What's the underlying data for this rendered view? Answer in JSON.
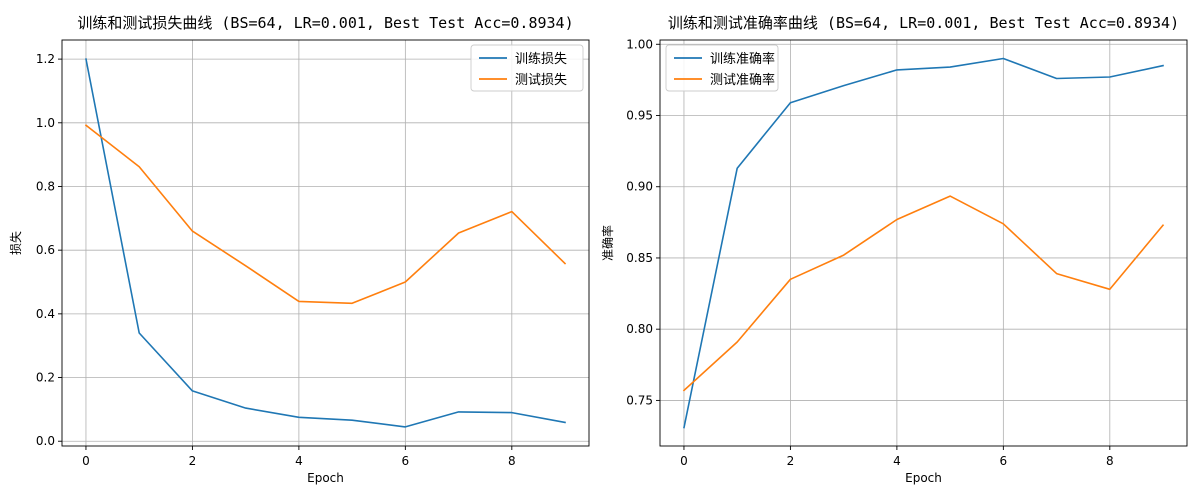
{
  "chart_data": [
    {
      "type": "line",
      "title": "训练和测试损失曲线 (BS=64, LR=0.001, Best Test Acc=0.8934)",
      "xlabel": "Epoch",
      "ylabel": "损失",
      "x": [
        0,
        1,
        2,
        3,
        4,
        5,
        6,
        7,
        8,
        9
      ],
      "xlim": [
        -0.45,
        9.45
      ],
      "ylim": [
        -0.015,
        1.26
      ],
      "xticks": [
        0,
        2,
        4,
        6,
        8
      ],
      "xtick_labels": [
        "0",
        "2",
        "4",
        "6",
        "8"
      ],
      "yticks": [
        0.0,
        0.2,
        0.4,
        0.6,
        0.8,
        1.0,
        1.2
      ],
      "ytick_labels": [
        "0.0",
        "0.2",
        "0.4",
        "0.6",
        "0.8",
        "1.0",
        "1.2"
      ],
      "grid": true,
      "legend_position": "top-right",
      "series": [
        {
          "name": "训练损失",
          "color": "#1f77b4",
          "values": [
            1.2,
            0.34,
            0.158,
            0.104,
            0.075,
            0.066,
            0.045,
            0.092,
            0.09,
            0.059
          ]
        },
        {
          "name": "测试损失",
          "color": "#ff7f0e",
          "values": [
            0.992,
            0.862,
            0.66,
            0.551,
            0.439,
            0.433,
            0.5,
            0.654,
            0.721,
            0.558
          ]
        }
      ]
    },
    {
      "type": "line",
      "title": "训练和测试准确率曲线 (BS=64, LR=0.001, Best Test Acc=0.8934)",
      "xlabel": "Epoch",
      "ylabel": "准确率",
      "x": [
        0,
        1,
        2,
        3,
        4,
        5,
        6,
        7,
        8,
        9
      ],
      "xlim": [
        -0.45,
        9.45
      ],
      "ylim": [
        0.718,
        1.003
      ],
      "xticks": [
        0,
        2,
        4,
        6,
        8
      ],
      "xtick_labels": [
        "0",
        "2",
        "4",
        "6",
        "8"
      ],
      "yticks": [
        0.75,
        0.8,
        0.85,
        0.9,
        0.95,
        1.0
      ],
      "ytick_labels": [
        "0.75",
        "0.80",
        "0.85",
        "0.90",
        "0.95",
        "1.00"
      ],
      "grid": true,
      "legend_position": "top-left",
      "series": [
        {
          "name": "训练准确率",
          "color": "#1f77b4",
          "values": [
            0.731,
            0.913,
            0.959,
            0.971,
            0.982,
            0.984,
            0.99,
            0.976,
            0.977,
            0.985
          ]
        },
        {
          "name": "测试准确率",
          "color": "#ff7f0e",
          "values": [
            0.757,
            0.791,
            0.835,
            0.852,
            0.877,
            0.8934,
            0.874,
            0.839,
            0.828,
            0.873
          ]
        }
      ]
    }
  ]
}
